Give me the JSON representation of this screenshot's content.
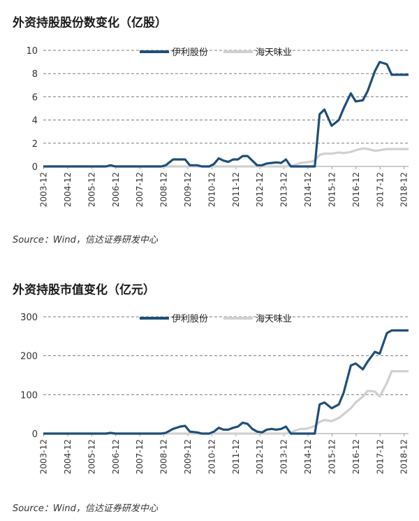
{
  "chart_data": [
    {
      "type": "line",
      "title": "外资持股股份数变化（亿股）",
      "source": "Source：Wind，信达证券研发中心",
      "ylim": [
        0,
        10
      ],
      "yticks": [
        0,
        2,
        4,
        6,
        8,
        10
      ],
      "grid": true,
      "legend_position": "top-right",
      "x_tick_labels": [
        "2003-12",
        "2004-12",
        "2005-12",
        "2006-12",
        "2007-12",
        "2008-12",
        "2009-12",
        "2010-12",
        "2011-12",
        "2012-12",
        "2013-12",
        "2014-12",
        "2015-12",
        "2016-12",
        "2017-12",
        "2018-12"
      ],
      "x": [
        2003.9,
        2006.5,
        2006.7,
        2006.9,
        2008.5,
        2008.8,
        2009.0,
        2009.3,
        2009.6,
        2009.8,
        2010.0,
        2010.3,
        2010.5,
        2010.8,
        2011.0,
        2011.2,
        2011.4,
        2011.6,
        2011.8,
        2012.0,
        2012.2,
        2012.4,
        2012.6,
        2012.8,
        2013.0,
        2013.2,
        2013.4,
        2013.6,
        2013.8,
        2014.0,
        2014.2,
        2014.4,
        2014.6,
        2014.8,
        2015.0,
        2015.2,
        2015.4,
        2015.6,
        2015.9,
        2016.2,
        2016.4,
        2016.7,
        2016.9,
        2017.2,
        2017.4,
        2017.7,
        2017.9,
        2018.2,
        2018.4,
        2018.6,
        2018.8,
        2019.0,
        2019.1
      ],
      "series": [
        {
          "name": "伊利股份",
          "color": "#1f4e79",
          "values": [
            0,
            0,
            0.1,
            0,
            0,
            0,
            0.1,
            0.6,
            0.6,
            0.6,
            0.1,
            0.1,
            0,
            0,
            0.2,
            0.7,
            0.5,
            0.4,
            0.6,
            0.6,
            0.9,
            0.9,
            0.5,
            0.1,
            0.1,
            0.25,
            0.3,
            0.35,
            0.3,
            0.6,
            0,
            0,
            0,
            0,
            0,
            0,
            4.5,
            4.9,
            3.5,
            4.0,
            5.0,
            6.3,
            5.6,
            5.7,
            6.5,
            8.2,
            9.0,
            8.8,
            7.9,
            7.9,
            7.9,
            7.9,
            7.9
          ]
        },
        {
          "name": "海天味业",
          "color": "#d0d0d0",
          "values": [
            0,
            0,
            0,
            0,
            0,
            0,
            0,
            0,
            0,
            0,
            0,
            0,
            0,
            0,
            0,
            0,
            0,
            0,
            0,
            0,
            0,
            0,
            0,
            0,
            0,
            0,
            0,
            0,
            0,
            0,
            0.05,
            0.15,
            0.3,
            0.35,
            0.4,
            0.5,
            1.0,
            1.1,
            1.1,
            1.2,
            1.15,
            1.25,
            1.4,
            1.55,
            1.5,
            1.35,
            1.4,
            1.5,
            1.5,
            1.5,
            1.5,
            1.5,
            1.5
          ]
        }
      ]
    },
    {
      "type": "line",
      "title": "外资持股市值变化（亿元）",
      "source": "Source：Wind，信达证券研发中心",
      "ylim": [
        0,
        300
      ],
      "yticks": [
        0,
        100,
        200,
        300
      ],
      "grid": true,
      "legend_position": "top-right",
      "x_tick_labels": [
        "2003-12",
        "2004-12",
        "2005-12",
        "2006-12",
        "2007-12",
        "2008-12",
        "2009-12",
        "2010-12",
        "2011-12",
        "2012-12",
        "2013-12",
        "2014-12",
        "2015-12",
        "2016-12",
        "2017-12",
        "2018-12"
      ],
      "x": [
        2003.9,
        2006.5,
        2006.7,
        2006.9,
        2008.5,
        2008.8,
        2009.0,
        2009.3,
        2009.6,
        2009.8,
        2010.0,
        2010.3,
        2010.5,
        2010.8,
        2011.0,
        2011.2,
        2011.4,
        2011.6,
        2011.8,
        2012.0,
        2012.2,
        2012.4,
        2012.6,
        2012.8,
        2013.0,
        2013.2,
        2013.4,
        2013.6,
        2013.8,
        2014.0,
        2014.2,
        2014.4,
        2014.6,
        2014.8,
        2015.0,
        2015.2,
        2015.4,
        2015.6,
        2015.9,
        2016.2,
        2016.4,
        2016.7,
        2016.9,
        2017.2,
        2017.4,
        2017.7,
        2017.9,
        2018.2,
        2018.4,
        2018.6,
        2018.8,
        2019.0,
        2019.1
      ],
      "series": [
        {
          "name": "伊利股份",
          "color": "#1f4e79",
          "values": [
            0,
            0,
            2,
            0,
            0,
            0,
            2,
            12,
            18,
            20,
            5,
            3,
            0,
            0,
            5,
            15,
            10,
            10,
            15,
            18,
            28,
            25,
            12,
            5,
            3,
            10,
            12,
            10,
            12,
            18,
            0,
            0,
            0,
            0,
            0,
            0,
            75,
            80,
            65,
            75,
            105,
            175,
            180,
            165,
            185,
            210,
            205,
            258,
            265,
            265,
            265,
            265,
            265
          ]
        },
        {
          "name": "海天味业",
          "color": "#d0d0d0",
          "values": [
            0,
            0,
            0,
            0,
            0,
            0,
            0,
            0,
            0,
            0,
            0,
            0,
            0,
            0,
            0,
            0,
            0,
            0,
            0,
            0,
            0,
            0,
            0,
            0,
            0,
            0,
            0,
            0,
            0,
            0,
            3,
            8,
            12,
            12,
            15,
            20,
            30,
            35,
            32,
            40,
            50,
            65,
            80,
            95,
            110,
            108,
            95,
            130,
            160,
            160,
            160,
            160,
            160
          ]
        }
      ]
    }
  ]
}
